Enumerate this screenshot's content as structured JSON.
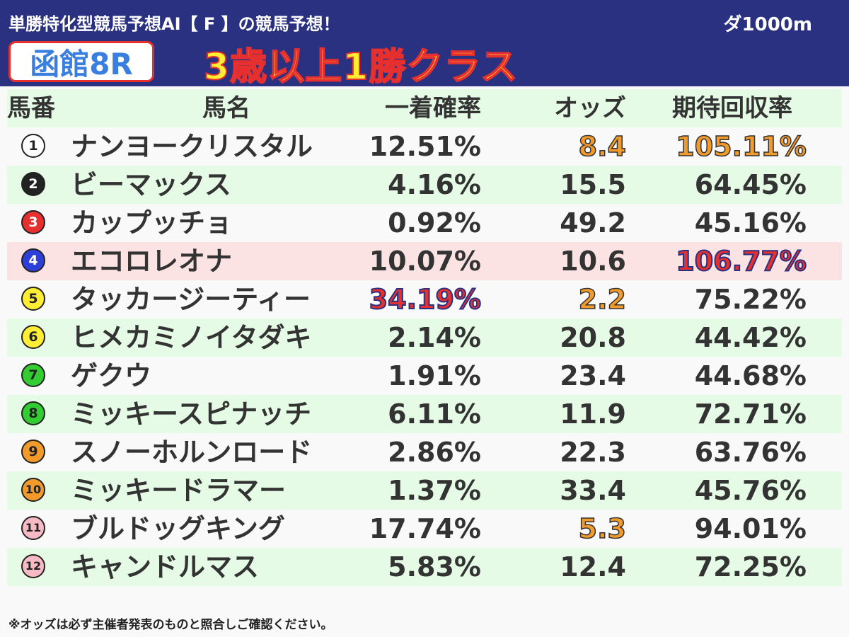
{
  "header": {
    "brand": "単勝特化型競馬予想AI【 F 】の競馬予想！",
    "distance": "ダ1000m",
    "venue": "函館8R",
    "race_class": "3歳以上1勝クラス"
  },
  "columns": {
    "num": "馬番",
    "name": "馬名",
    "prob": "一着確率",
    "odds": "オッズ",
    "ret": "期待回収率"
  },
  "rows": [
    {
      "num": "1",
      "name": "ナンヨークリスタル",
      "prob": "12.51%",
      "odds": "8.4",
      "ret": "105.11%",
      "bg": "white",
      "circle_bg": "#ffffff",
      "circle_fg": "#222222",
      "odds_hl": "orange",
      "ret_hl": "orange",
      "prob_hl": ""
    },
    {
      "num": "2",
      "name": "ビーマックス",
      "prob": "4.16%",
      "odds": "15.5",
      "ret": "64.45%",
      "bg": "green",
      "circle_bg": "#222222",
      "circle_fg": "#ffffff",
      "odds_hl": "",
      "ret_hl": "",
      "prob_hl": ""
    },
    {
      "num": "3",
      "name": "カップッチョ",
      "prob": "0.92%",
      "odds": "49.2",
      "ret": "45.16%",
      "bg": "white",
      "circle_bg": "#e6302f",
      "circle_fg": "#ffffff",
      "odds_hl": "",
      "ret_hl": "",
      "prob_hl": ""
    },
    {
      "num": "4",
      "name": "エコロレオナ",
      "prob": "10.07%",
      "odds": "10.6",
      "ret": "106.77%",
      "bg": "pink",
      "circle_bg": "#2d3fd8",
      "circle_fg": "#ffffff",
      "odds_hl": "",
      "ret_hl": "red",
      "prob_hl": ""
    },
    {
      "num": "5",
      "name": "タッカージーティー",
      "prob": "34.19%",
      "odds": "2.2",
      "ret": "75.22%",
      "bg": "white",
      "circle_bg": "#ffee33",
      "circle_fg": "#222222",
      "odds_hl": "orange",
      "ret_hl": "",
      "prob_hl": "red"
    },
    {
      "num": "6",
      "name": "ヒメカミノイタダキ",
      "prob": "2.14%",
      "odds": "20.8",
      "ret": "44.42%",
      "bg": "green",
      "circle_bg": "#ffee33",
      "circle_fg": "#222222",
      "odds_hl": "",
      "ret_hl": "",
      "prob_hl": ""
    },
    {
      "num": "7",
      "name": "ゲクウ",
      "prob": "1.91%",
      "odds": "23.4",
      "ret": "44.68%",
      "bg": "white",
      "circle_bg": "#33cc33",
      "circle_fg": "#222222",
      "odds_hl": "",
      "ret_hl": "",
      "prob_hl": ""
    },
    {
      "num": "8",
      "name": "ミッキースピナッチ",
      "prob": "6.11%",
      "odds": "11.9",
      "ret": "72.71%",
      "bg": "green",
      "circle_bg": "#33cc33",
      "circle_fg": "#222222",
      "odds_hl": "",
      "ret_hl": "",
      "prob_hl": ""
    },
    {
      "num": "9",
      "name": "スノーホルンロード",
      "prob": "2.86%",
      "odds": "22.3",
      "ret": "63.76%",
      "bg": "white",
      "circle_bg": "#f39a2c",
      "circle_fg": "#222222",
      "odds_hl": "",
      "ret_hl": "",
      "prob_hl": ""
    },
    {
      "num": "10",
      "name": "ミッキードラマー",
      "prob": "1.37%",
      "odds": "33.4",
      "ret": "45.76%",
      "bg": "green",
      "circle_bg": "#f39a2c",
      "circle_fg": "#222222",
      "odds_hl": "",
      "ret_hl": "",
      "prob_hl": ""
    },
    {
      "num": "11",
      "name": "ブルドッグキング",
      "prob": "17.74%",
      "odds": "5.3",
      "ret": "94.01%",
      "bg": "white",
      "circle_bg": "#f7b9c4",
      "circle_fg": "#222222",
      "odds_hl": "orange",
      "ret_hl": "",
      "prob_hl": ""
    },
    {
      "num": "12",
      "name": "キャンドルマス",
      "prob": "5.83%",
      "odds": "12.4",
      "ret": "72.25%",
      "bg": "green",
      "circle_bg": "#f7b9c4",
      "circle_fg": "#222222",
      "odds_hl": "",
      "ret_hl": "",
      "prob_hl": ""
    }
  ],
  "footer": "※オッズは必ず主催者発表のものと照合しご確認ください。"
}
